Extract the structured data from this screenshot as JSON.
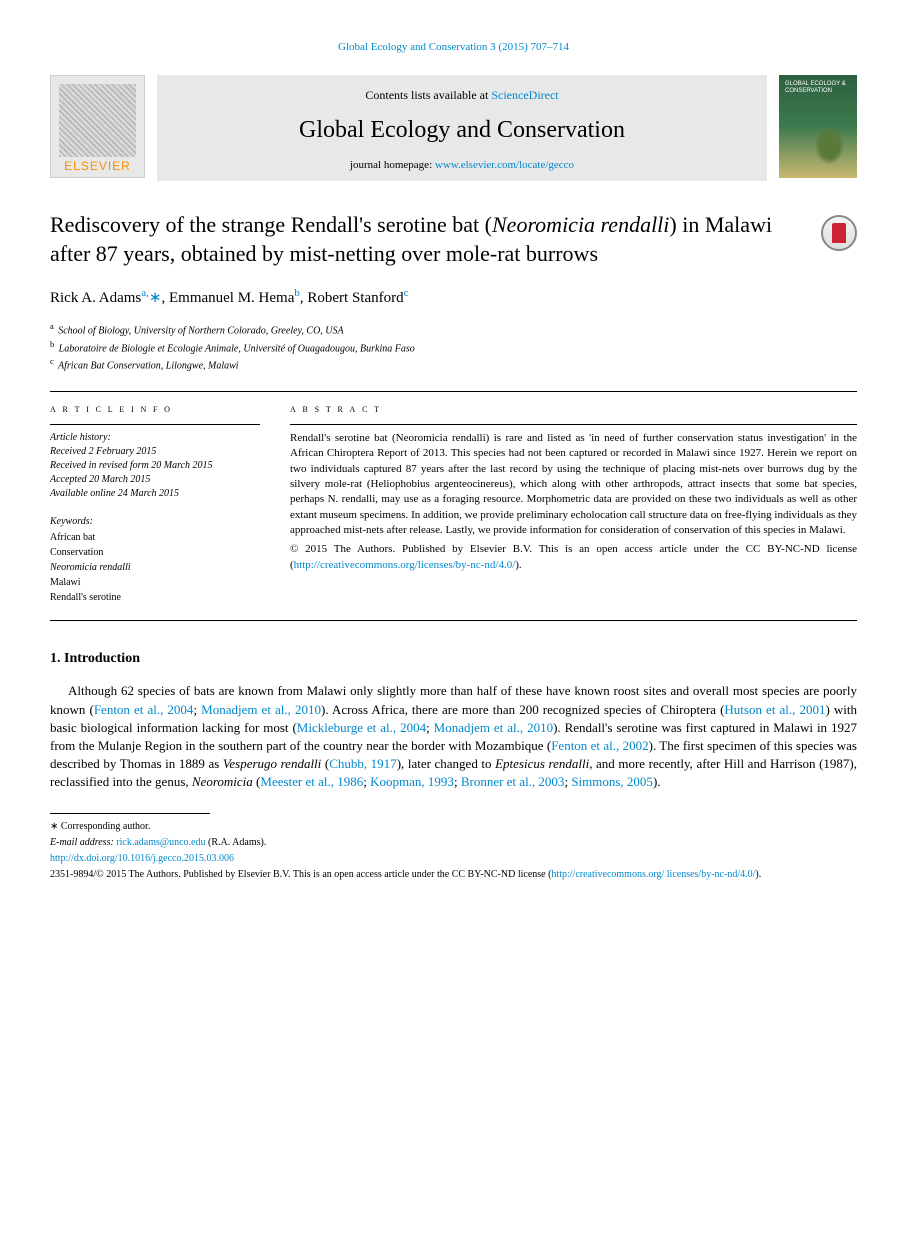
{
  "top_citation": "Global Ecology and Conservation 3 (2015) 707–714",
  "header": {
    "elsevier": "ELSEVIER",
    "contents_prefix": "Contents lists available at ",
    "contents_link": "ScienceDirect",
    "journal_name": "Global Ecology and Conservation",
    "homepage_prefix": "journal homepage: ",
    "homepage_url": "www.elsevier.com/locate/gecco",
    "cover_text": "GLOBAL ECOLOGY & CONSERVATION"
  },
  "title": "Rediscovery of the strange Rendall's serotine bat (Neoromicia rendalli) in Malawi after 87 years, obtained by mist-netting over mole-rat burrows",
  "authors_html": [
    {
      "name": "Rick A. Adams",
      "sup": "a,",
      "star": "∗"
    },
    {
      "name": ", Emmanuel M. Hema",
      "sup": "b",
      "star": ""
    },
    {
      "name": ", Robert Stanford",
      "sup": "c",
      "star": ""
    }
  ],
  "affiliations": [
    {
      "sup": "a",
      "text": " School of Biology, University of Northern Colorado, Greeley, CO, USA"
    },
    {
      "sup": "b",
      "text": " Laboratoire de Biologie et Ecologie Animale, Université of Ouagadougou, Burkina Faso"
    },
    {
      "sup": "c",
      "text": " African Bat Conservation, Lilongwe, Malawi"
    }
  ],
  "meta": {
    "info_head": "a r t i c l e   i n f o",
    "history": [
      "Article history:",
      "Received 2 February 2015",
      "Received in revised form 20 March 2015",
      "Accepted 20 March 2015",
      "Available online 24 March 2015"
    ],
    "kw_head": "Keywords:",
    "keywords": [
      "African bat",
      "Conservation",
      "Neoromicia rendalli",
      "Malawi",
      "Rendall's serotine"
    ]
  },
  "abstract": {
    "head": "a b s t r a c t",
    "paragraphs": [
      "Rendall's serotine bat (Neoromicia rendalli) is rare and listed as 'in need of further conservation status investigation' in the African Chiroptera Report of 2013. This species had not been captured or recorded in Malawi since 1927. Herein we report on two individuals captured 87 years after the last record by using the technique of placing mist-nets over burrows dug by the silvery mole-rat (Heliophobius argenteocinereus), which along with other arthropods, attract insects that some bat species, perhaps N. rendalli, may use as a foraging resource. Morphometric data are provided on these two individuals as well as other extant museum specimens. In addition, we provide preliminary echolocation call structure data on free-flying individuals as they approached mist-nets after release. Lastly, we provide information for consideration of conservation of this species in Malawi.",
      "© 2015 The Authors. Published by Elsevier B.V. This is an open access article under the CC BY-NC-ND license (",
      ")."
    ],
    "license_url": "http://creativecommons.org/licenses/by-nc-nd/4.0/"
  },
  "section1": {
    "heading": "1. Introduction",
    "body": "Although 62 species of bats are known from Malawi only slightly more than half of these have known roost sites and overall most species are poorly known (Fenton et al., 2004; Monadjem et al., 2010). Across Africa, there are more than 200 recognized species of Chiroptera (Hutson et al., 2001) with basic biological information lacking for most (Mickleburge et al., 2004; Monadjem et al., 2010). Rendall's serotine was first captured in Malawi in 1927 from the Mulanje Region in the southern part of the country near the border with Mozambique (Fenton et al., 2002). The first specimen of this species was described by Thomas in 1889 as Vesperugo rendalli (Chubb, 1917), later changed to Eptesicus rendalli, and more recently, after Hill and Harrison (1987), reclassified into the genus, Neoromicia (Meester et al., 1986; Koopman, 1993; Bronner et al., 2003; Simmons, 2005)."
  },
  "footnotes": {
    "correspond": "∗ Corresponding author.",
    "email_label": "E-mail address: ",
    "email": "rick.adams@unco.edu",
    "email_suffix": " (R.A. Adams).",
    "doi": "http://dx.doi.org/10.1016/j.gecco.2015.03.006",
    "copyright": "2351-9894/© 2015 The Authors. Published by Elsevier B.V. This is an open access article under the CC BY-NC-ND license (",
    "license1": "http://creativecommons.org/",
    "license2": "licenses/by-nc-nd/4.0/",
    "close": ")."
  }
}
